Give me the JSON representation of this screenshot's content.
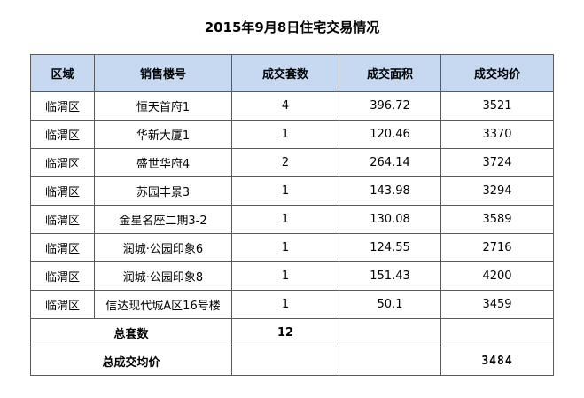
{
  "title": "2015年9月8日住宅交易情况",
  "columns": [
    "区域",
    "销售楼号",
    "成交套数",
    "成交面积",
    "成交均价"
  ],
  "rows": [
    {
      "area": "临渭区",
      "building": "恒天首府1",
      "units": "4",
      "sqm": "396.72",
      "price": "3521"
    },
    {
      "area": "临渭区",
      "building": "华新大厦1",
      "units": "1",
      "sqm": "120.46",
      "price": "3370"
    },
    {
      "area": "临渭区",
      "building": "盛世华府4",
      "units": "2",
      "sqm": "264.14",
      "price": "3724"
    },
    {
      "area": "临渭区",
      "building": "苏园丰景3",
      "units": "1",
      "sqm": "143.98",
      "price": "3294"
    },
    {
      "area": "临渭区",
      "building": "金星名座二期3-2",
      "units": "1",
      "sqm": "130.08",
      "price": "3589"
    },
    {
      "area": "临渭区",
      "building": "润城·公园印象6",
      "units": "1",
      "sqm": "124.55",
      "price": "2716"
    },
    {
      "area": "临渭区",
      "building": "润城·公园印象8",
      "units": "1",
      "sqm": "151.43",
      "price": "4200"
    },
    {
      "area": "临渭区",
      "building": "信达现代城A区16号楼",
      "units": "1",
      "sqm": "50.1",
      "price": "3459"
    }
  ],
  "summary": {
    "total_units_label": "总套数",
    "total_units": "12",
    "avg_price_label": "总成交均价",
    "avg_price": "3484"
  }
}
